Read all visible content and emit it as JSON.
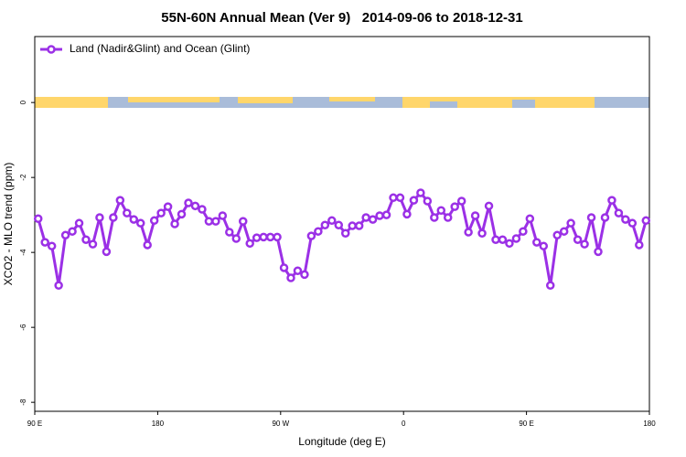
{
  "chart_data": {
    "type": "line",
    "title": "55N-60N Annual Mean (Ver 9)   2014-09-06 to 2018-12-31",
    "x_label": "Longitude (deg E)",
    "y_label": "XCO2 - MLO trend (ppm)",
    "x": [
      92.5,
      97.5,
      102.5,
      107.5,
      112.5,
      117.5,
      122.5,
      127.5,
      132.5,
      137.5,
      142.5,
      147.5,
      152.5,
      157.5,
      162.5,
      167.5,
      172.5,
      177.5,
      182.5,
      187.5,
      192.5,
      197.5,
      202.5,
      207.5,
      212.5,
      217.5,
      222.5,
      227.5,
      232.5,
      237.5,
      242.5,
      247.5,
      252.5,
      257.5,
      262.5,
      267.5,
      272.5,
      277.5,
      282.5,
      287.5,
      292.5,
      297.5,
      302.5,
      307.5,
      312.5,
      317.5,
      322.5,
      327.5,
      332.5,
      337.5,
      342.5,
      347.5,
      352.5,
      357.5,
      362.5,
      367.5,
      372.5,
      377.5,
      382.5,
      387.5,
      392.5,
      397.5,
      402.5,
      407.5,
      412.5,
      417.5,
      422.5,
      427.5,
      432.5,
      437.5,
      442.5,
      447.5,
      452.5,
      457.5,
      462.5,
      467.5,
      472.5,
      477.5,
      482.5,
      487.5,
      492.5,
      497.5,
      502.5,
      507.5,
      512.5,
      517.5,
      522.5,
      527.5,
      532.5,
      537.5
    ],
    "series": [
      {
        "name": "Land (Nadir&Glint) and Ocean (Glint)",
        "color": "#9b30e6",
        "values": [
          -3.1,
          -3.73,
          -3.83,
          -4.88,
          -3.54,
          -3.44,
          -3.22,
          -3.66,
          -3.78,
          -3.07,
          -3.98,
          -3.07,
          -2.61,
          -2.95,
          -3.12,
          -3.22,
          -3.8,
          -3.15,
          -2.95,
          -2.78,
          -3.24,
          -2.98,
          -2.68,
          -2.76,
          -2.85,
          -3.17,
          -3.17,
          -3.02,
          -3.46,
          -3.63,
          -3.17,
          -3.76,
          -3.61,
          -3.59,
          -3.59,
          -3.59,
          -4.41,
          -4.68,
          -4.49,
          -4.59,
          -3.56,
          -3.44,
          -3.27,
          -3.15,
          -3.27,
          -3.49,
          -3.29,
          -3.29,
          -3.07,
          -3.12,
          -3.02,
          -3.0,
          -2.54,
          -2.54,
          -2.98,
          -2.61,
          -2.41,
          -2.63,
          -3.07,
          -2.88,
          -3.07,
          -2.78,
          -2.63,
          -3.46,
          -3.02,
          -3.49,
          -2.76,
          -3.66,
          -3.66,
          -3.76,
          -3.63,
          -3.44,
          -3.1,
          -3.73,
          -3.83,
          -4.88,
          -3.54,
          -3.44,
          -3.22,
          -3.66,
          -3.78,
          -3.07,
          -3.98,
          -3.07,
          -2.61,
          -2.95,
          -3.12,
          -3.22,
          -3.8,
          -3.15
        ]
      }
    ],
    "xlim": [
      90,
      540
    ],
    "xticks": [
      {
        "value": 90,
        "label": "90 E"
      },
      {
        "value": 180,
        "label": "180"
      },
      {
        "value": 270,
        "label": "90 W"
      },
      {
        "value": 360,
        "label": "0"
      },
      {
        "value": 450,
        "label": "90 E"
      },
      {
        "value": 540,
        "label": "180"
      }
    ],
    "ylim": [
      -8.24,
      1.76
    ],
    "yticks": [
      0,
      -2,
      -4,
      -6,
      -8
    ],
    "legend": "top-left"
  }
}
